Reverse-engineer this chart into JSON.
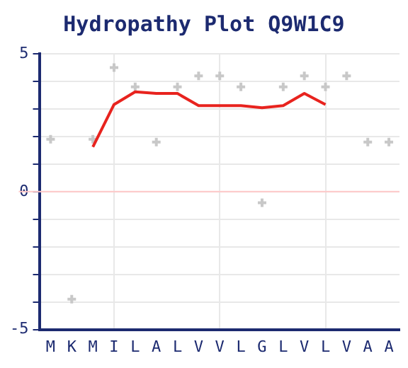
{
  "chart_data": {
    "type": "line",
    "title": "Hydropathy Plot Q9W1C9",
    "categories": [
      "M",
      "K",
      "M",
      "I",
      "L",
      "A",
      "L",
      "V",
      "V",
      "L",
      "G",
      "L",
      "V",
      "L",
      "V",
      "A",
      "A"
    ],
    "series": [
      {
        "type": "scatter",
        "color": "#c8c8c8",
        "marker": "cross",
        "values": [
          1.9,
          -3.9,
          1.9,
          4.5,
          3.8,
          1.8,
          3.8,
          4.2,
          4.2,
          3.8,
          -0.4,
          3.8,
          4.2,
          3.8,
          4.2,
          1.8,
          1.8
        ]
      },
      {
        "color": "#e8231e",
        "marker": "none",
        "values": [
          null,
          null,
          1.62,
          3.16,
          3.62,
          3.56,
          3.56,
          3.12,
          3.12,
          3.12,
          3.04,
          3.12,
          3.56,
          3.16,
          null,
          null,
          null
        ]
      }
    ],
    "ylim": [
      -5,
      5
    ],
    "yticks": [
      -5,
      {
        "value": -4,
        "label": null
      },
      {
        "value": -3,
        "label": null
      },
      {
        "value": -2,
        "label": null
      },
      {
        "value": -1,
        "label": null
      },
      0,
      {
        "value": 1,
        "label": null
      },
      {
        "value": 2,
        "label": null
      },
      {
        "value": 3,
        "label": null
      },
      {
        "value": 4,
        "label": null
      },
      5
    ],
    "ref_lines": [
      {
        "axis": "y",
        "value": 0,
        "color": "#ffc8c8"
      }
    ],
    "grid": true,
    "legend": false
  }
}
